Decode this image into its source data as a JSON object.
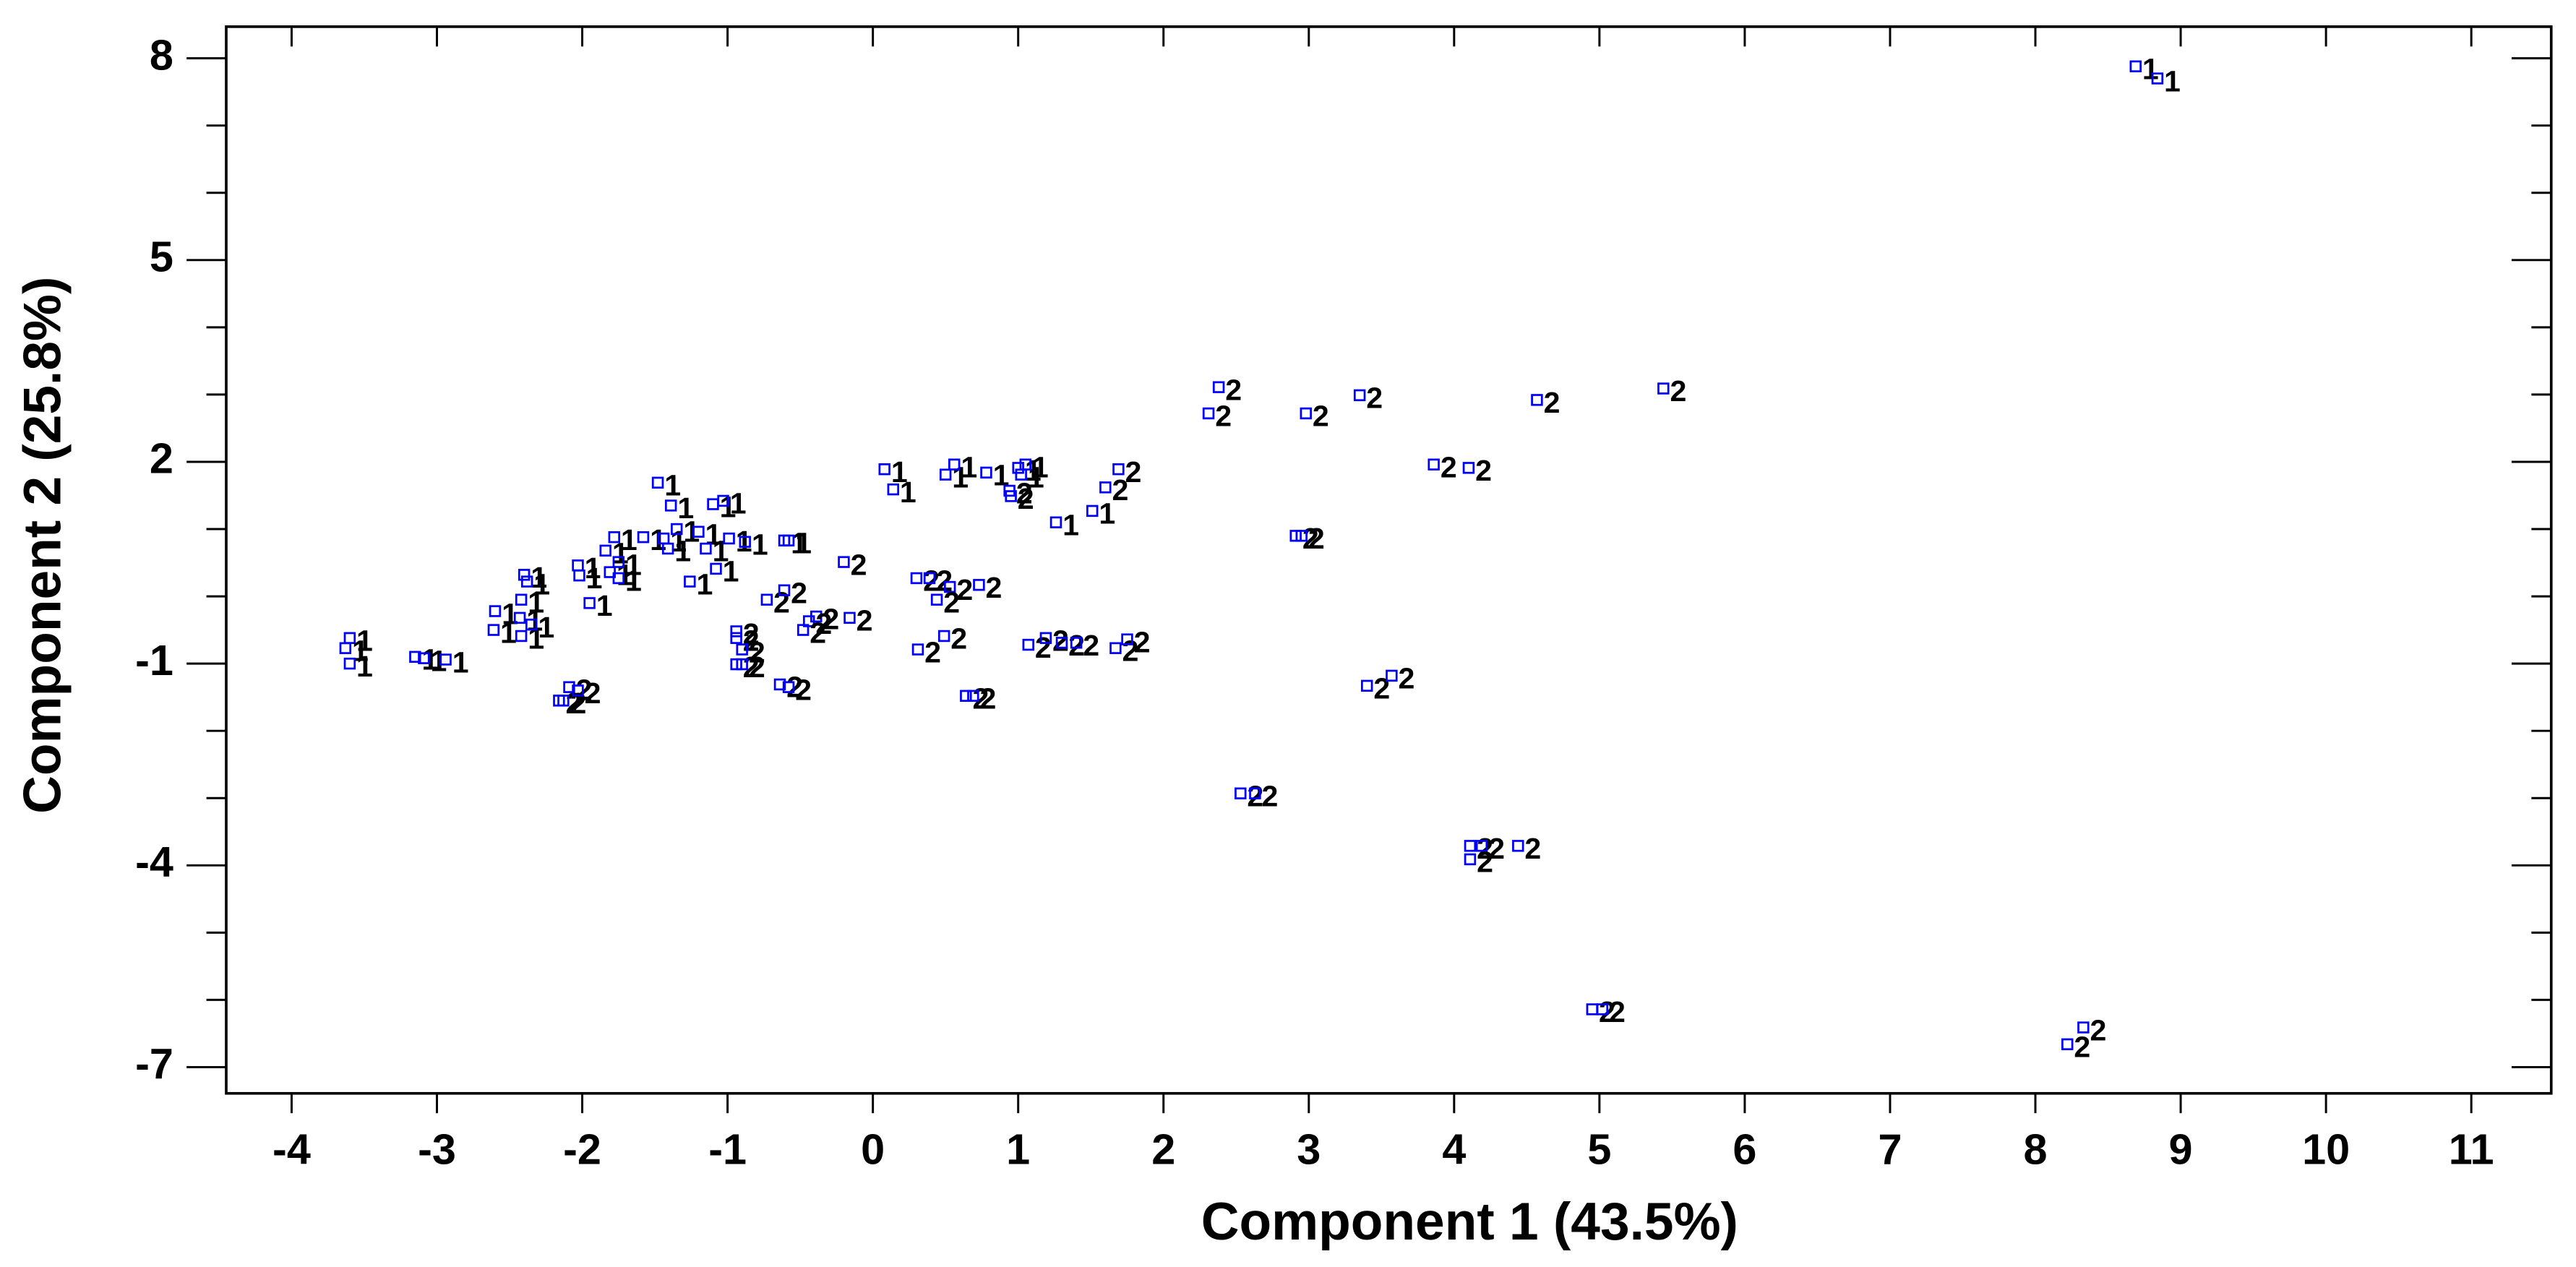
{
  "chart_data": {
    "type": "scatter",
    "xlabel": "Component 1 (43.5%)",
    "ylabel": "Component 2 (25.8%)",
    "xlim": [
      -4.45,
      11.55
    ],
    "ylim": [
      -7.39,
      8.47
    ],
    "xticks": [
      -4,
      -3,
      -2,
      -1,
      0,
      1,
      2,
      3,
      4,
      5,
      6,
      7,
      8,
      9,
      10,
      11
    ],
    "yticks": [
      8,
      5,
      2,
      -1,
      -4,
      -7
    ],
    "yminorticks": [
      7,
      6,
      4,
      3,
      1,
      0,
      -2,
      -3,
      -5,
      -6
    ],
    "grid": false,
    "series": [
      {
        "name": "1",
        "color": "#0000ff",
        "x": [
          8.69,
          8.84,
          -3.6,
          -3.63,
          -3.6,
          -3.15,
          -3.09,
          -2.94,
          -2.6,
          -2.61,
          -2.4,
          -2.38,
          -2.42,
          -2.43,
          -2.42,
          -2.35,
          -2.03,
          -2.02,
          -1.95,
          -1.84,
          -1.81,
          -1.78,
          -1.75,
          -1.75,
          -1.58,
          -1.48,
          -1.44,
          -1.39,
          -1.35,
          -1.41,
          -1.26,
          -1.2,
          -1.15,
          -1.1,
          -1.03,
          -1.08,
          -0.99,
          -0.88,
          -0.61,
          -0.58,
          0.08,
          0.14,
          0.5,
          0.56,
          0.78,
          1.0,
          1.02,
          1.05,
          1.26,
          1.51
        ],
        "values": [
          7.88,
          7.7,
          -0.62,
          -0.77,
          -1.0,
          -0.9,
          -0.92,
          -0.94,
          -0.22,
          -0.5,
          0.32,
          0.22,
          -0.05,
          -0.32,
          -0.59,
          -0.42,
          0.46,
          0.31,
          -0.1,
          0.68,
          0.36,
          0.88,
          0.51,
          0.27,
          0.88,
          1.69,
          0.86,
          1.35,
          1.0,
          0.71,
          0.22,
          0.96,
          0.71,
          1.37,
          1.42,
          0.41,
          0.86,
          0.81,
          0.83,
          0.83,
          1.89,
          1.59,
          1.81,
          1.96,
          1.84,
          1.91,
          1.81,
          1.96,
          1.1,
          1.27
        ]
      },
      {
        "name": "2",
        "color": "#0000ff",
        "x": [
          2.38,
          2.31,
          2.98,
          3.35,
          4.57,
          5.44,
          3.86,
          4.1,
          1.69,
          1.6,
          0.94,
          0.95,
          2.91,
          2.95,
          -0.2,
          0.3,
          0.39,
          0.53,
          0.44,
          0.73,
          -0.73,
          -0.61,
          -0.16,
          -0.39,
          -0.44,
          -0.48,
          -0.94,
          -0.94,
          -0.9,
          -0.94,
          -0.9,
          0.31,
          0.49,
          1.07,
          1.19,
          1.3,
          1.4,
          1.67,
          1.75,
          -0.64,
          -0.58,
          -2.09,
          -2.16,
          -2.13,
          -2.03,
          0.64,
          0.69,
          3.4,
          3.57,
          2.53,
          2.63,
          4.11,
          4.19,
          4.11,
          4.44,
          4.95,
          5.02,
          8.33,
          8.22
        ],
        "values": [
          3.11,
          2.72,
          2.72,
          2.99,
          2.92,
          3.09,
          1.96,
          1.91,
          1.89,
          1.62,
          1.57,
          1.49,
          0.9,
          0.9,
          0.51,
          0.27,
          0.27,
          0.14,
          -0.05,
          0.17,
          -0.05,
          0.09,
          -0.32,
          -0.3,
          -0.37,
          -0.5,
          -0.52,
          -0.62,
          -0.79,
          -1.01,
          -1.01,
          -0.79,
          -0.59,
          -0.72,
          -0.62,
          -0.69,
          -0.69,
          -0.77,
          -0.64,
          -1.31,
          -1.35,
          -1.35,
          -1.55,
          -1.55,
          -1.4,
          -1.48,
          -1.48,
          -1.33,
          -1.18,
          -2.93,
          -2.93,
          -3.71,
          -3.71,
          -3.91,
          -3.71,
          -6.14,
          -6.14,
          -6.41,
          -6.66
        ]
      }
    ]
  }
}
